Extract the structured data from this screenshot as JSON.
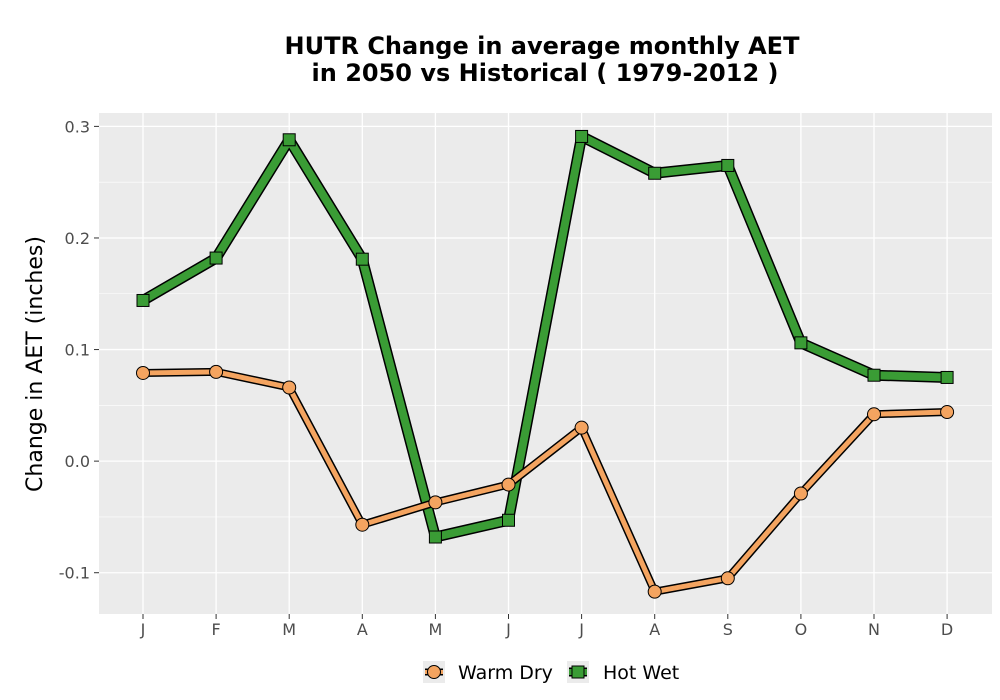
{
  "chart_data": {
    "type": "line",
    "title": [
      "HUTR  Change in average monthly AET",
      "in 2050 vs Historical ( 1979-2012 )"
    ],
    "xlabel": "",
    "ylabel": "Change in AET (inches)",
    "categories": [
      "J",
      "F",
      "M",
      "A",
      "M",
      "J",
      "J",
      "A",
      "S",
      "O",
      "N",
      "D"
    ],
    "ylim": [
      -0.137,
      0.312
    ],
    "yticks": [
      -0.1,
      0.0,
      0.1,
      0.2,
      0.3
    ],
    "ytick_labels": [
      "-0.1",
      "0.0",
      "0.1",
      "0.2",
      "0.3"
    ],
    "grid": true,
    "legend_position": "bottom",
    "series": [
      {
        "name": "Warm Dry",
        "color": "#f4a460",
        "marker": "circle",
        "values": [
          0.079,
          0.08,
          0.066,
          -0.057,
          -0.037,
          -0.021,
          0.03,
          -0.117,
          -0.105,
          -0.029,
          0.042,
          0.044
        ]
      },
      {
        "name": "Hot Wet",
        "color": "#3a9c35",
        "marker": "square",
        "values": [
          0.144,
          0.182,
          0.288,
          0.181,
          -0.068,
          -0.053,
          0.291,
          0.258,
          0.265,
          0.106,
          0.077,
          0.075
        ]
      }
    ]
  }
}
